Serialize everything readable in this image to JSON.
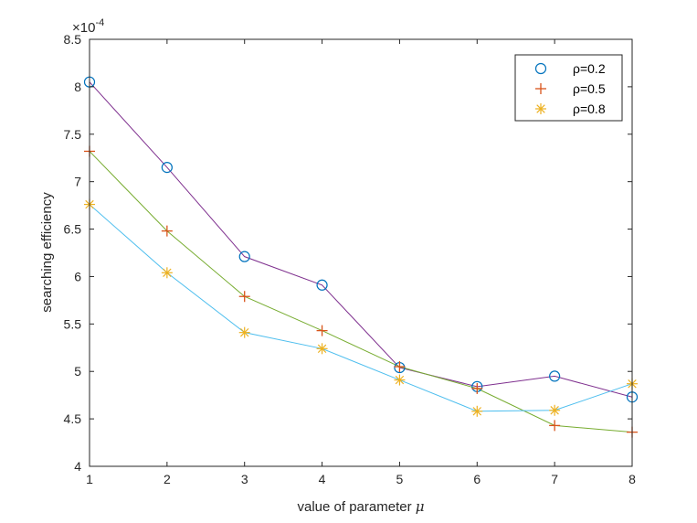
{
  "chart_data": {
    "type": "line",
    "x": [
      1,
      2,
      3,
      4,
      5,
      6,
      7,
      8
    ],
    "xlim": [
      1,
      8
    ],
    "ylim": [
      4,
      8.5
    ],
    "y_multiplier": "×10",
    "y_exponent": "-4",
    "xticks": [
      "1",
      "2",
      "3",
      "4",
      "5",
      "6",
      "7",
      "8"
    ],
    "yticks": [
      "4",
      "4.5",
      "5",
      "5.5",
      "6",
      "6.5",
      "7",
      "7.5",
      "8",
      "8.5"
    ],
    "xlabel_text": "value of parameter ",
    "xlabel_symbol": "μ",
    "ylabel": "searching efficiency",
    "legend_position": "top-right",
    "grid": false,
    "series": [
      {
        "name": "ρ=0.2",
        "marker": "circle",
        "marker_color": "#0072BD",
        "line_color": "#7E2F8E",
        "values": [
          8.05,
          7.15,
          6.21,
          5.91,
          5.04,
          4.84,
          4.95,
          4.73
        ]
      },
      {
        "name": "ρ=0.5",
        "marker": "plus",
        "marker_color": "#D95319",
        "line_color": "#77AC30",
        "values": [
          7.32,
          6.48,
          5.79,
          5.43,
          5.05,
          4.82,
          4.43,
          4.36
        ]
      },
      {
        "name": "ρ=0.8",
        "marker": "asterisk",
        "marker_color": "#EDB120",
        "line_color": "#4DBEEE",
        "values": [
          6.76,
          6.04,
          5.41,
          5.24,
          4.91,
          4.58,
          4.59,
          4.87
        ]
      }
    ]
  }
}
